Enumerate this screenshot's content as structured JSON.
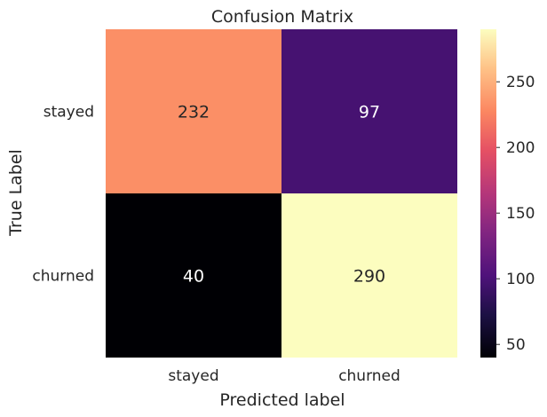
{
  "chart_data": {
    "type": "heatmap",
    "title": "Confusion Matrix",
    "xlabel": "Predicted label",
    "ylabel": "True Label",
    "x_categories": [
      "stayed",
      "churned"
    ],
    "y_categories": [
      "stayed",
      "churned"
    ],
    "values": [
      [
        232,
        97
      ],
      [
        40,
        290
      ]
    ],
    "colormap": "magma",
    "colorbar": {
      "range": [
        40,
        290
      ],
      "ticks": [
        50,
        100,
        150,
        200,
        250
      ],
      "tick_labels": [
        "50",
        "100",
        "150",
        "200",
        "250"
      ]
    },
    "annotation_colors": {
      "on_light": "#262626",
      "on_dark": "#ffffff"
    }
  }
}
